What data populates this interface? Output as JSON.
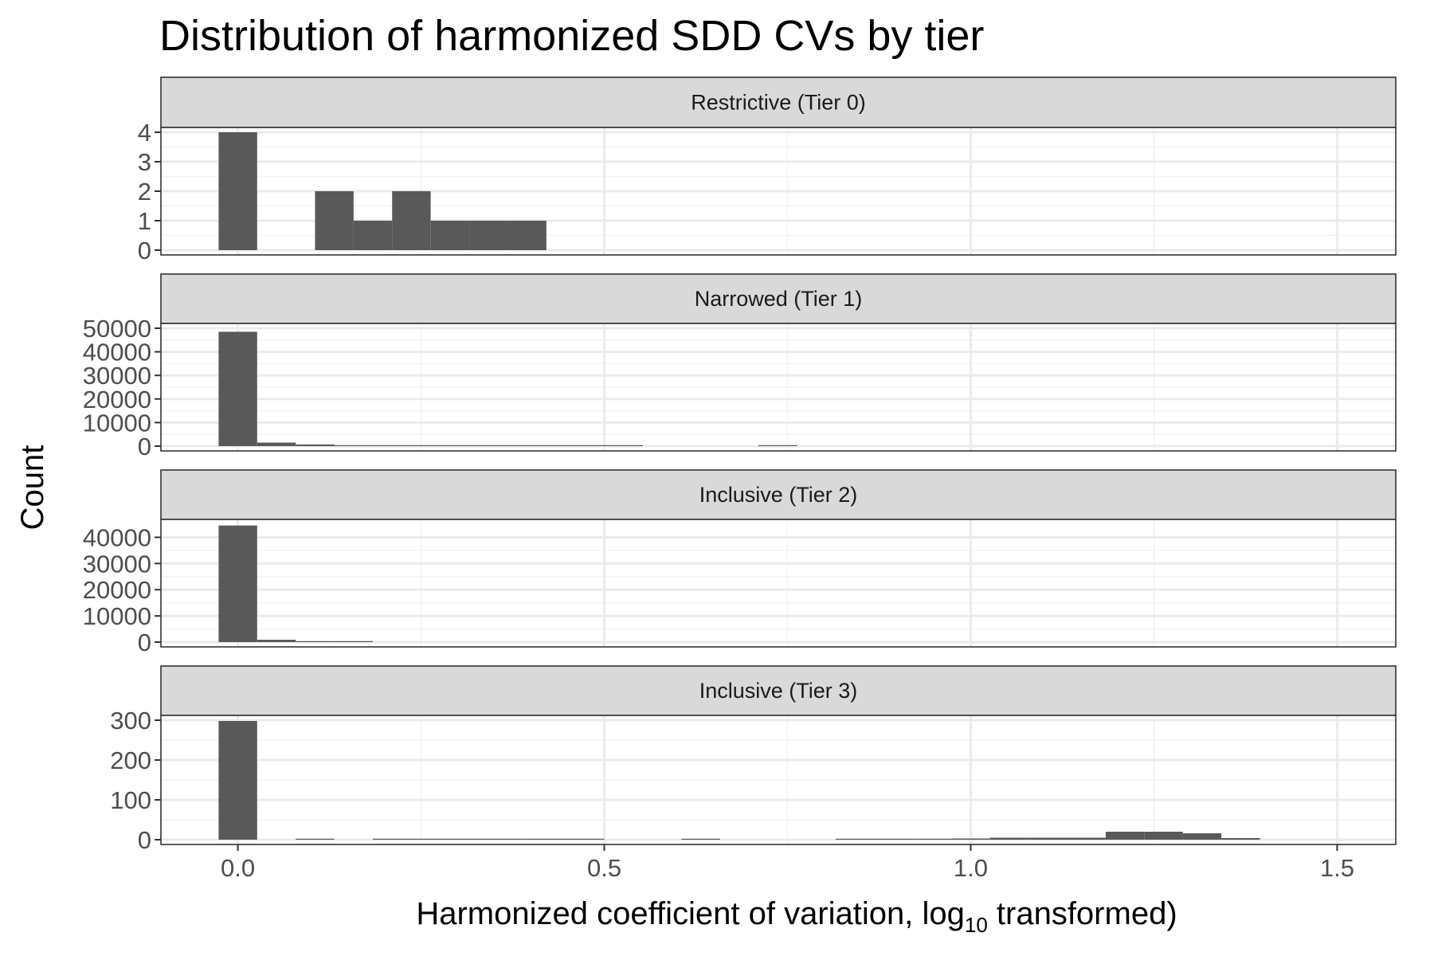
{
  "chart_data": {
    "type": "bar",
    "title": "Distribution of harmonized SDD CVs by tier",
    "xlabel": "Harmonized coefficient of variation,  log",
    "xlabel_subscript": "10",
    "xlabel_suffix": "  transformed)",
    "ylabel": "Count",
    "xlim": [
      -0.105,
      1.58
    ],
    "bin_width": 0.0526,
    "x_ticks": [
      "0.0",
      "0.5",
      "1.0",
      "1.5"
    ],
    "x_tick_values": [
      0.0,
      0.5,
      1.0,
      1.5
    ],
    "grid": true,
    "facets": [
      {
        "label": "Restrictive (Tier 0)",
        "ylim": [
          0,
          4
        ],
        "y_ticks": [
          0,
          1,
          2,
          3,
          4
        ],
        "bins": [
          {
            "x": 0.0,
            "count": 4
          },
          {
            "x": 0.1316,
            "count": 2
          },
          {
            "x": 0.1842,
            "count": 1
          },
          {
            "x": 0.2368,
            "count": 2
          },
          {
            "x": 0.2895,
            "count": 1
          },
          {
            "x": 0.3421,
            "count": 1
          },
          {
            "x": 0.3947,
            "count": 1
          }
        ]
      },
      {
        "label": "Narrowed (Tier 1)",
        "ylim": [
          0,
          50000
        ],
        "y_ticks": [
          0,
          10000,
          20000,
          30000,
          40000,
          50000
        ],
        "bins": [
          {
            "x": 0.0,
            "count": 48500
          },
          {
            "x": 0.0526,
            "count": 1500
          },
          {
            "x": 0.1053,
            "count": 700
          },
          {
            "x": 0.1579,
            "count": 400
          },
          {
            "x": 0.2105,
            "count": 250
          },
          {
            "x": 0.2632,
            "count": 180
          },
          {
            "x": 0.3158,
            "count": 150
          },
          {
            "x": 0.3684,
            "count": 120
          },
          {
            "x": 0.4211,
            "count": 100
          },
          {
            "x": 0.4737,
            "count": 90
          },
          {
            "x": 0.5263,
            "count": 70
          },
          {
            "x": 0.7368,
            "count": 60
          }
        ]
      },
      {
        "label": "Inclusive (Tier 2)",
        "ylim": [
          0,
          45000
        ],
        "y_ticks": [
          0,
          10000,
          20000,
          30000,
          40000
        ],
        "bins": [
          {
            "x": 0.0,
            "count": 44500
          },
          {
            "x": 0.0526,
            "count": 900
          },
          {
            "x": 0.1053,
            "count": 300
          },
          {
            "x": 0.1579,
            "count": 200
          }
        ]
      },
      {
        "label": "Inclusive (Tier 3)",
        "ylim": [
          0,
          300
        ],
        "y_ticks": [
          0,
          100,
          200,
          300
        ],
        "bins": [
          {
            "x": 0.0,
            "count": 298
          },
          {
            "x": 0.1053,
            "count": 1
          },
          {
            "x": 0.2105,
            "count": 1
          },
          {
            "x": 0.2632,
            "count": 1
          },
          {
            "x": 0.3158,
            "count": 1
          },
          {
            "x": 0.3684,
            "count": 1
          },
          {
            "x": 0.4211,
            "count": 2
          },
          {
            "x": 0.4737,
            "count": 1
          },
          {
            "x": 0.6316,
            "count": 1
          },
          {
            "x": 0.8421,
            "count": 2
          },
          {
            "x": 0.8947,
            "count": 1
          },
          {
            "x": 0.9474,
            "count": 1
          },
          {
            "x": 1.0,
            "count": 3
          },
          {
            "x": 1.0526,
            "count": 5
          },
          {
            "x": 1.1053,
            "count": 5
          },
          {
            "x": 1.1579,
            "count": 5
          },
          {
            "x": 1.2105,
            "count": 20
          },
          {
            "x": 1.2632,
            "count": 20
          },
          {
            "x": 1.3158,
            "count": 16
          },
          {
            "x": 1.3684,
            "count": 4
          }
        ]
      }
    ]
  }
}
